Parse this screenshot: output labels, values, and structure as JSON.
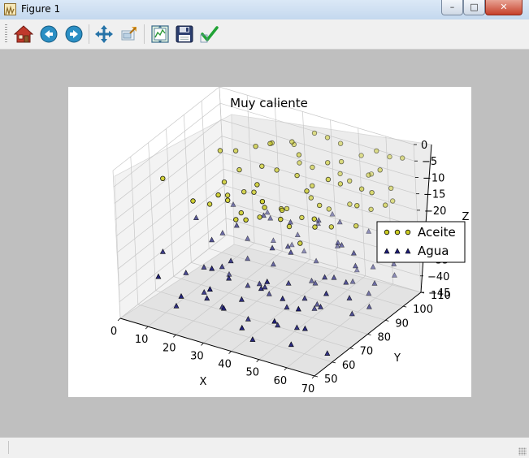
{
  "window": {
    "title": "Figure 1"
  },
  "window_controls": {
    "minimize": "–",
    "maximize": "□",
    "close": "✕"
  },
  "toolbar": {
    "items": [
      {
        "name": "home",
        "icon": "home-icon"
      },
      {
        "name": "back",
        "icon": "arrow-left-icon"
      },
      {
        "name": "forward",
        "icon": "arrow-right-icon"
      },
      {
        "name": "pan",
        "icon": "move-icon"
      },
      {
        "name": "zoom",
        "icon": "zoom-icon"
      },
      {
        "name": "configure-subplots",
        "icon": "subplots-icon"
      },
      {
        "name": "save",
        "icon": "save-icon"
      },
      {
        "name": "edit-parameters",
        "icon": "checkmark-icon"
      }
    ]
  },
  "colors": {
    "aceite": "#cccc22",
    "agua": "#1c1c78",
    "edge": "#000000"
  },
  "chart_data": {
    "type": "scatter",
    "projection": "3d",
    "title": "Muy caliente",
    "xlabel": "X",
    "ylabel": "Y",
    "zlabel": "Z",
    "xticks": [
      "0",
      "10",
      "20",
      "30",
      "40",
      "50",
      "60",
      "70"
    ],
    "yticks": [
      "50",
      "60",
      "70",
      "80",
      "90",
      "100",
      "110"
    ],
    "zticks": [
      "0",
      "−5",
      "−10",
      "−15",
      "−20",
      "−25",
      "−30",
      "−35",
      "−40",
      "−45"
    ],
    "xlim": [
      0,
      70
    ],
    "ylim": [
      50,
      110
    ],
    "zlim": [
      -45,
      0
    ],
    "grid": true,
    "legend_position": "right",
    "series": [
      {
        "name": "Aceite",
        "marker": "circle",
        "color": "#cccc22",
        "points": [
          [
            10,
            62,
            -5
          ],
          [
            18,
            82,
            -3
          ],
          [
            22,
            60,
            -8
          ],
          [
            24,
            66,
            -11
          ],
          [
            25,
            73,
            -7
          ],
          [
            27,
            88,
            -2
          ],
          [
            28,
            70,
            -9
          ],
          [
            30,
            62,
            -5
          ],
          [
            30,
            76,
            -10
          ],
          [
            31,
            90,
            -1
          ],
          [
            32,
            64,
            -7
          ],
          [
            33,
            82,
            -4
          ],
          [
            34,
            68,
            -12
          ],
          [
            35,
            74,
            -8
          ],
          [
            35,
            96,
            -2
          ],
          [
            36,
            62,
            -11
          ],
          [
            37,
            84,
            -5
          ],
          [
            38,
            72,
            -14
          ],
          [
            39,
            70,
            -3
          ],
          [
            40,
            92,
            -3
          ],
          [
            41,
            60,
            -9
          ],
          [
            42,
            78,
            -13
          ],
          [
            43,
            86,
            -6
          ],
          [
            44,
            66,
            -7
          ],
          [
            44,
            102,
            -1
          ],
          [
            45,
            74,
            -11
          ],
          [
            46,
            62,
            -3
          ],
          [
            47,
            88,
            -9
          ],
          [
            48,
            80,
            -15
          ],
          [
            49,
            94,
            -4
          ],
          [
            50,
            70,
            -13
          ],
          [
            50,
            100,
            -6
          ],
          [
            51,
            64,
            -8
          ],
          [
            52,
            84,
            -12
          ],
          [
            53,
            76,
            -4
          ],
          [
            54,
            98,
            -10
          ],
          [
            55,
            68,
            -16
          ],
          [
            56,
            90,
            -7
          ],
          [
            57,
            82,
            -2
          ],
          [
            58,
            72,
            -12
          ],
          [
            59,
            106,
            -3
          ],
          [
            60,
            78,
            -14
          ],
          [
            61,
            94,
            -9
          ],
          [
            62,
            66,
            -6
          ],
          [
            63,
            88,
            -11
          ],
          [
            64,
            100,
            -5
          ],
          [
            65,
            84,
            -15
          ],
          [
            66,
            92,
            -8
          ],
          [
            67,
            108,
            -4
          ],
          [
            68,
            96,
            -13
          ],
          [
            26,
            80,
            -6
          ],
          [
            29,
            94,
            -3
          ],
          [
            33,
            100,
            -5
          ],
          [
            38,
            104,
            -2
          ],
          [
            42,
            96,
            -8
          ],
          [
            46,
            106,
            -4
          ],
          [
            52,
            108,
            -7
          ],
          [
            57,
            104,
            -10
          ],
          [
            61,
            110,
            -6
          ],
          [
            65,
            104,
            -12
          ],
          [
            21,
            86,
            -4
          ],
          [
            36,
            98,
            -9
          ],
          [
            48,
            102,
            -11
          ],
          [
            54,
            110,
            -13
          ],
          [
            40,
            84,
            -16
          ],
          [
            45,
            90,
            -14
          ],
          [
            50,
            92,
            -17
          ],
          [
            55,
            96,
            -16
          ],
          [
            60,
            100,
            -18
          ],
          [
            64,
            106,
            -17
          ]
        ]
      },
      {
        "name": "Agua",
        "marker": "triangle",
        "color": "#1c1c78",
        "points": [
          [
            6,
            66,
            -30
          ],
          [
            8,
            82,
            -26
          ],
          [
            10,
            72,
            -38
          ],
          [
            12,
            90,
            -33
          ],
          [
            14,
            60,
            -42
          ],
          [
            16,
            78,
            -29
          ],
          [
            17,
            96,
            -36
          ],
          [
            19,
            68,
            -40
          ],
          [
            20,
            86,
            -27
          ],
          [
            22,
            74,
            -34
          ],
          [
            23,
            100,
            -30
          ],
          [
            24,
            62,
            -38
          ],
          [
            26,
            92,
            -25
          ],
          [
            27,
            80,
            -41
          ],
          [
            28,
            70,
            -29
          ],
          [
            30,
            104,
            -35
          ],
          [
            31,
            64,
            -31
          ],
          [
            32,
            84,
            -44
          ],
          [
            33,
            96,
            -27
          ],
          [
            34,
            76,
            -37
          ],
          [
            35,
            108,
            -32
          ],
          [
            36,
            66,
            -43
          ],
          [
            37,
            88,
            -30
          ],
          [
            38,
            78,
            -26
          ],
          [
            39,
            100,
            -39
          ],
          [
            40,
            70,
            -34
          ],
          [
            41,
            94,
            -42
          ],
          [
            42,
            82,
            -28
          ],
          [
            43,
            106,
            -36
          ],
          [
            44,
            62,
            -30
          ],
          [
            45,
            90,
            -40
          ],
          [
            46,
            74,
            -33
          ],
          [
            47,
            102,
            -26
          ],
          [
            48,
            86,
            -44
          ],
          [
            49,
            68,
            -37
          ],
          [
            50,
            96,
            -29
          ],
          [
            51,
            80,
            -42
          ],
          [
            52,
            110,
            -31
          ],
          [
            53,
            72,
            -35
          ],
          [
            54,
            92,
            -27
          ],
          [
            55,
            64,
            -40
          ],
          [
            56,
            84,
            -33
          ],
          [
            57,
            104,
            -38
          ],
          [
            58,
            76,
            -29
          ],
          [
            59,
            98,
            -43
          ],
          [
            60,
            70,
            -35
          ],
          [
            61,
            88,
            -26
          ],
          [
            62,
            108,
            -41
          ],
          [
            63,
            80,
            -31
          ],
          [
            64,
            94,
            -37
          ],
          [
            65,
            66,
            -28
          ],
          [
            66,
            102,
            -34
          ],
          [
            67,
            86,
            -40
          ],
          [
            68,
            74,
            -32
          ],
          [
            69,
            110,
            -27
          ],
          [
            15,
            88,
            -44
          ],
          [
            25,
            108,
            -41
          ],
          [
            29,
            58,
            -26
          ],
          [
            34,
            56,
            -36
          ],
          [
            44,
            56,
            -43
          ],
          [
            49,
            58,
            -25
          ],
          [
            53,
            60,
            -30
          ],
          [
            58,
            56,
            -41
          ],
          [
            62,
            58,
            -36
          ],
          [
            67,
            62,
            -44
          ],
          [
            21,
            104,
            -39
          ],
          [
            39,
            110,
            -29
          ],
          [
            47,
            110,
            -44
          ],
          [
            56,
            110,
            -35
          ],
          [
            11,
            98,
            -28
          ],
          [
            18,
            106,
            -32
          ],
          [
            28,
            110,
            -43
          ],
          [
            43,
            52,
            -38
          ],
          [
            32,
            52,
            -29
          ],
          [
            20,
            54,
            -35
          ],
          [
            12,
            54,
            -31
          ],
          [
            64,
            52,
            -27
          ],
          [
            55,
            52,
            -33
          ],
          [
            48,
            64,
            -41
          ],
          [
            38,
            60,
            -34
          ],
          [
            24,
            70,
            -44
          ],
          [
            14,
            76,
            -37
          ],
          [
            66,
            78,
            -39
          ],
          [
            60,
            90,
            -31
          ],
          [
            52,
            100,
            -42
          ],
          [
            42,
            98,
            -25
          ],
          [
            30,
            90,
            -38
          ],
          [
            18,
            94,
            -41
          ]
        ]
      }
    ]
  }
}
